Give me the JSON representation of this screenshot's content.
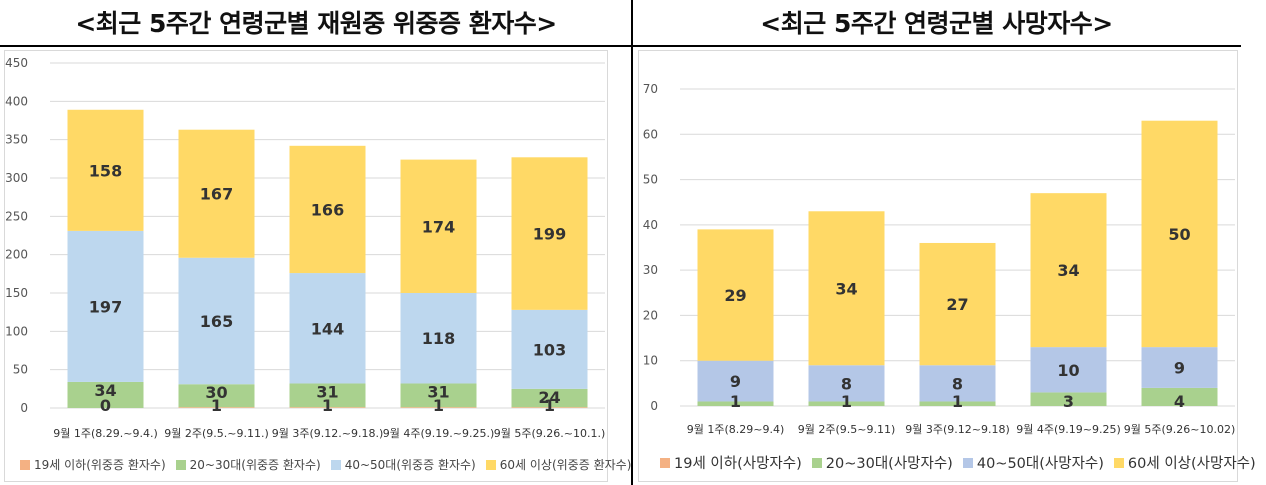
{
  "charts": {
    "left_title": "<최근 5주간 연령군별 재원중 위중증 환자수>",
    "right_title": "<최근 5주간 연령군별 사망자수>"
  },
  "chart_data": [
    {
      "type": "bar",
      "stacked": true,
      "title": "<최근 5주간 연령군별 재원중 위중증 환자수>",
      "categories": [
        "9월 1주(8.29.~9.4.)",
        "9월 2주(9.5.~9.11.)",
        "9월 3주(9.12.~9.18.)",
        "9월 4주(9.19.~9.25.)",
        "9월 5주(9.26.~10.1.)"
      ],
      "series": [
        {
          "name": "19세 이하(위중증 환자수)",
          "values": [
            0,
            1,
            1,
            1,
            1
          ],
          "color": "#f4b183"
        },
        {
          "name": "20~30대(위중증 환자수)",
          "values": [
            34,
            30,
            31,
            31,
            24
          ],
          "color": "#a9d18e"
        },
        {
          "name": "40~50대(위중증 환자수)",
          "values": [
            197,
            165,
            144,
            118,
            103
          ],
          "color": "#bdd7ee"
        },
        {
          "name": "60세 이상(위중증 환자수)",
          "values": [
            158,
            167,
            166,
            174,
            199
          ],
          "color": "#ffd966"
        }
      ],
      "ylim": [
        0,
        450
      ],
      "yticks": [
        0,
        50,
        100,
        150,
        200,
        250,
        300,
        350,
        400,
        450
      ],
      "grid": true,
      "legend": "bottom"
    },
    {
      "type": "bar",
      "stacked": true,
      "title": "<최근 5주간 연령군별 사망자수>",
      "categories": [
        "9월 1주(8.29~9.4)",
        "9월 2주(9.5~9.11)",
        "9월 3주(9.12~9.18)",
        "9월 4주(9.19~9.25)",
        "9월 5주(9.26~10.02)"
      ],
      "series": [
        {
          "name": "19세 이하(사망자수)",
          "values": [
            0,
            0,
            0,
            0,
            0
          ],
          "color": "#f4b183"
        },
        {
          "name": "20~30대(사망자수)",
          "values": [
            1,
            1,
            1,
            3,
            4
          ],
          "color": "#a9d18e"
        },
        {
          "name": "40~50대(사망자수)",
          "values": [
            9,
            8,
            8,
            10,
            9
          ],
          "color": "#b4c7e7"
        },
        {
          "name": "60세 이상(사망자수)",
          "values": [
            29,
            34,
            27,
            34,
            50
          ],
          "color": "#ffd966"
        }
      ],
      "ylim": [
        0,
        70
      ],
      "yticks": [
        0,
        10,
        20,
        30,
        40,
        50,
        60,
        70
      ],
      "grid": true,
      "legend": "bottom"
    }
  ]
}
